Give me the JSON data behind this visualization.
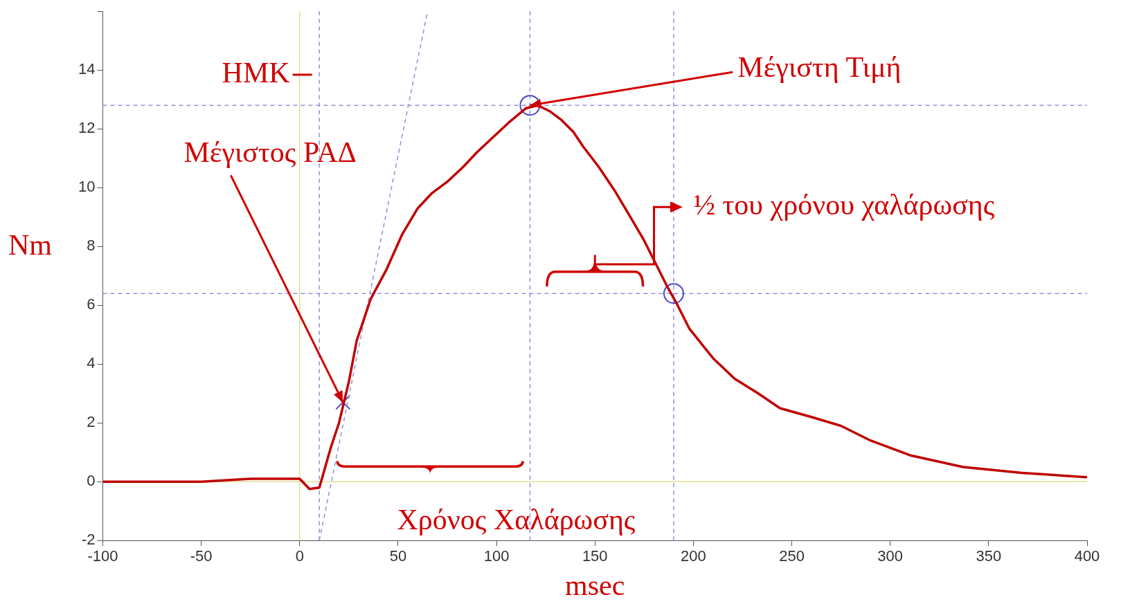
{
  "chart_data": {
    "type": "line",
    "xlabel": "msec",
    "ylabel": "Nm",
    "xlim": [
      -100,
      400
    ],
    "xticks": [
      -100,
      -50,
      0,
      50,
      100,
      150,
      200,
      250,
      300,
      350,
      400
    ],
    "ylim": [
      -2,
      16
    ],
    "yticks": [
      -2,
      0,
      2,
      4,
      6,
      8,
      10,
      12,
      14,
      {
        "value": 16,
        "label": null
      }
    ],
    "grid": false,
    "legend": false,
    "marker": "none",
    "series": [
      {
        "color": "#c00000",
        "x": [
          -100,
          -75,
          -50,
          -25,
          0,
          5,
          10,
          13,
          16,
          20,
          25,
          29,
          36,
          44,
          52,
          60,
          67,
          75,
          83,
          90,
          98,
          106,
          115,
          121,
          127,
          133,
          139,
          144,
          152,
          160,
          168,
          175,
          181,
          187,
          192,
          198,
          204,
          210,
          221,
          233,
          244,
          260,
          275,
          290,
          310,
          337,
          367,
          400
        ],
        "values": [
          0,
          0,
          0,
          0.1,
          0.1,
          -0.25,
          -0.2,
          0.5,
          1.2,
          2.0,
          3.4,
          4.8,
          6.2,
          7.2,
          8.4,
          9.3,
          9.8,
          10.2,
          10.7,
          11.2,
          11.7,
          12.2,
          12.7,
          12.8,
          12.6,
          12.3,
          11.9,
          11.4,
          10.7,
          9.9,
          9.0,
          8.2,
          7.4,
          6.6,
          6.0,
          5.2,
          4.7,
          4.2,
          3.5,
          3.0,
          2.5,
          2.2,
          1.9,
          1.4,
          0.9,
          0.5,
          0.3,
          0.15
        ]
      },
      {
        "type": "line",
        "color": "#9090d8",
        "line_style": "dashed",
        "x": [
          10,
          65
        ],
        "values": [
          -2,
          16
        ]
      },
      {
        "type": "scatter",
        "marker": "cross",
        "color": "#4a4ac8",
        "x": [
          22
        ],
        "values": [
          2.7
        ]
      },
      {
        "type": "scatter",
        "marker": "circle",
        "color": "#4a4ac8",
        "x": [
          117,
          190
        ],
        "values": [
          12.8,
          6.4
        ]
      }
    ],
    "ref_lines": [
      {
        "axis": "x",
        "value": 0,
        "color": "#e0e090",
        "line_style": "solid"
      },
      {
        "axis": "y",
        "value": 0,
        "color": "#e0e090",
        "line_style": "solid"
      },
      {
        "axis": "x",
        "value": 10,
        "color": "#9090d8",
        "line_style": "dashed"
      },
      {
        "axis": "x",
        "value": 117,
        "color": "#9090d8",
        "line_style": "dashed"
      },
      {
        "axis": "x",
        "value": 190,
        "color": "#9090d8",
        "line_style": "dashed"
      },
      {
        "axis": "y",
        "value": 12.8,
        "color": "#9090d8",
        "line_style": "dashed"
      },
      {
        "axis": "y",
        "value": 6.4,
        "color": "#9090d8",
        "line_style": "dashed"
      }
    ],
    "annotations": [
      "ΗΜΚ",
      {
        "text": "Μέγιστος ΡΑΔ",
        "x": 22,
        "y": 2.7
      },
      {
        "text": "Μέγιστη Τιμή",
        "x": 117,
        "y": 12.8
      },
      "½ του χρόνου χαλάρωσης",
      "Χρόνος Χαλάρωσης"
    ]
  }
}
